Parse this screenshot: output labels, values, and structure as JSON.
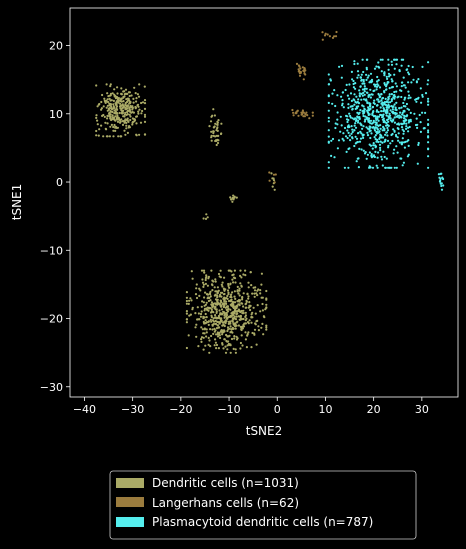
{
  "chart_data": {
    "type": "scatter",
    "title": "",
    "xlabel": "tSNE2",
    "ylabel": "tSNE1",
    "xlim": [
      -43,
      37.5
    ],
    "ylim": [
      -31.5,
      25.5
    ],
    "xticks": [
      -40,
      -30,
      -20,
      -10,
      0,
      10,
      20,
      30
    ],
    "yticks": [
      -30,
      -20,
      -10,
      0,
      10,
      20
    ],
    "grid": false,
    "legend_position": "below",
    "colors": {
      "background": "#000000",
      "axes": "#ffffff",
      "text": "#ffffff",
      "legend_border": "#cccccc"
    },
    "series": [
      {
        "name": "Dendritic cells (n=1031)",
        "color": "#aaaa66",
        "count": 1031,
        "clusters": [
          {
            "center": [
              -32.5,
              10.5
            ],
            "spread": [
              3.2,
              2.4
            ],
            "count": 330
          },
          {
            "center": [
              -10.5,
              -19.0
            ],
            "spread": [
              5.2,
              3.8
            ],
            "count": 640
          },
          {
            "center": [
              -13.0,
              7.5
            ],
            "spread": [
              0.9,
              2.0
            ],
            "count": 40
          },
          {
            "center": [
              -9.0,
              -2.5
            ],
            "spread": [
              0.6,
              0.4
            ],
            "count": 10
          },
          {
            "center": [
              -15.0,
              -5.0
            ],
            "spread": [
              0.5,
              0.5
            ],
            "count": 4
          },
          {
            "center": [
              -1.0,
              0.0
            ],
            "spread": [
              0.7,
              0.8
            ],
            "count": 7
          }
        ]
      },
      {
        "name": "Langerhans cells (n=62)",
        "color": "#9b7c3e",
        "count": 62,
        "clusters": [
          {
            "center": [
              5.0,
              16.0
            ],
            "spread": [
              1.0,
              0.9
            ],
            "count": 22
          },
          {
            "center": [
              5.0,
              10.0
            ],
            "spread": [
              1.5,
              0.6
            ],
            "count": 25
          },
          {
            "center": [
              -1.0,
              1.0
            ],
            "spread": [
              0.8,
              0.8
            ],
            "count": 5
          },
          {
            "center": [
              11.0,
              21.5
            ],
            "spread": [
              1.5,
              0.6
            ],
            "count": 10
          }
        ]
      },
      {
        "name": "Plasmacytoid dendritic cells (n=787)",
        "color": "#55eeee",
        "count": 787,
        "clusters": [
          {
            "center": [
              21.0,
              10.0
            ],
            "spread": [
              6.5,
              5.0
            ],
            "count": 772
          },
          {
            "center": [
              34.0,
              0.3
            ],
            "spread": [
              0.4,
              0.9
            ],
            "count": 15
          }
        ]
      }
    ]
  }
}
